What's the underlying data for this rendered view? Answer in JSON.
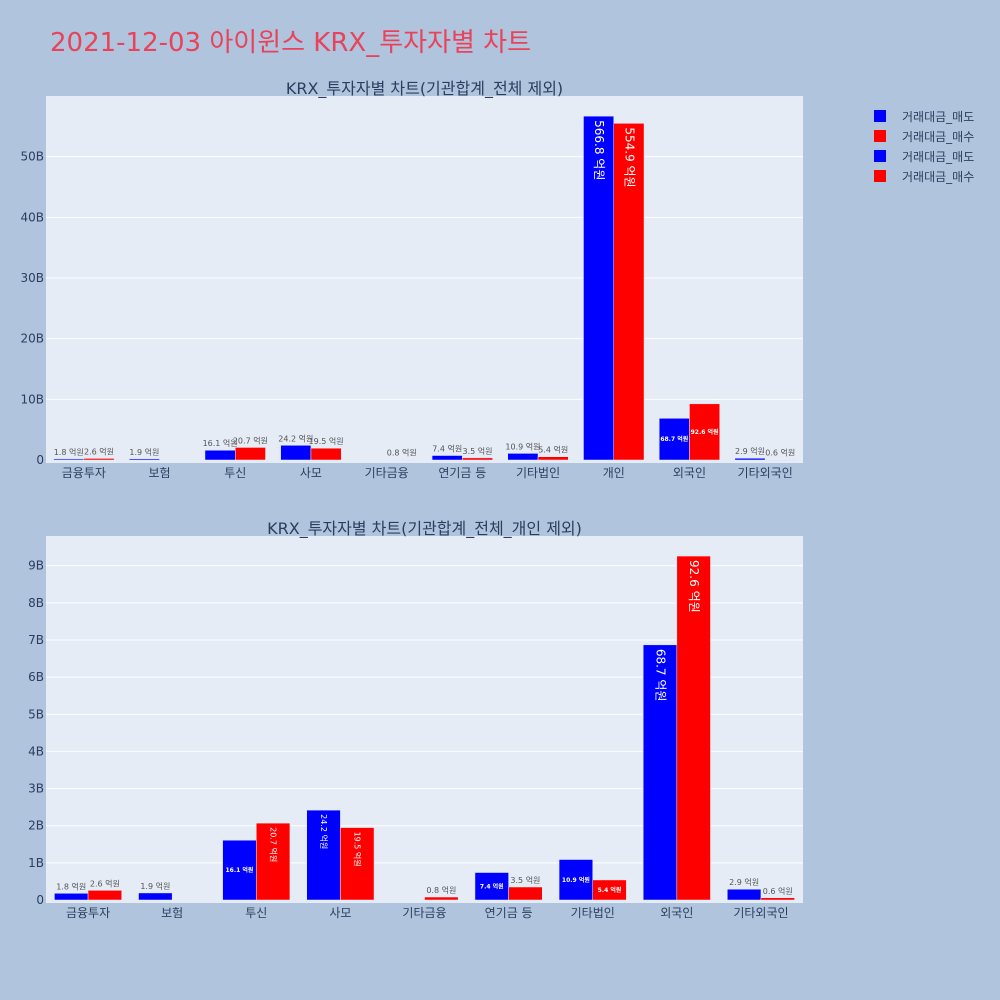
{
  "page": {
    "title": "2021-12-03 아이윈스 KRX_투자자별 차트"
  },
  "colors": {
    "sell": "#0000ff",
    "buy": "#ff0000",
    "plot_bg": "#e5ecf6",
    "page_bg": "#b0c4de",
    "title": "#e8435a"
  },
  "legend": {
    "items": [
      {
        "label": "거래대금_매도",
        "color": "#0000ff"
      },
      {
        "label": "거래대금_매수",
        "color": "#ff0000"
      },
      {
        "label": "거래대금_매도",
        "color": "#0000ff"
      },
      {
        "label": "거래대금_매수",
        "color": "#ff0000"
      }
    ]
  },
  "chart_data": [
    {
      "type": "bar",
      "title": "KRX_투자자별 차트(기관합계_전체 제외)",
      "categories": [
        "금융투자",
        "보험",
        "투신",
        "사모",
        "기타금융",
        "연기금 등",
        "기타법인",
        "개인",
        "외국인",
        "기타외국인"
      ],
      "ylim": [
        0,
        60
      ],
      "yticks": [
        0,
        10,
        20,
        30,
        40,
        50
      ],
      "ytick_labels": [
        "0",
        "10B",
        "20B",
        "30B",
        "40B",
        "50B"
      ],
      "series": [
        {
          "name": "거래대금_매도",
          "values": [
            0.18,
            0.19,
            1.61,
            2.42,
            0,
            0.74,
            1.09,
            56.68,
            6.87,
            0.29
          ],
          "labels": [
            "1.8 억원",
            "1.9 억원",
            "16.1 억원",
            "24.2 억원",
            "",
            "7.4 억원",
            "10.9 억원",
            "566.8 억원",
            "68.7 억원",
            "2.9 억원"
          ]
        },
        {
          "name": "거래대금_매수",
          "values": [
            0.26,
            0,
            2.07,
            1.95,
            0.08,
            0.35,
            0.54,
            55.49,
            9.26,
            0.06
          ],
          "labels": [
            "2.6 억원",
            "",
            "20.7 억원",
            "19.5 억원",
            "0.8 억원",
            "3.5 억원",
            "5.4 억원",
            "554.9 억원",
            "92.6 억원",
            "0.6 억원"
          ]
        }
      ]
    },
    {
      "type": "bar",
      "title": "KRX_투자자별 차트(기관합계_전체_개인 제외)",
      "categories": [
        "금융투자",
        "보험",
        "투신",
        "사모",
        "기타금융",
        "연기금 등",
        "기타법인",
        "외국인",
        "기타외국인"
      ],
      "ylim": [
        0,
        9.8
      ],
      "yticks": [
        0,
        1,
        2,
        3,
        4,
        5,
        6,
        7,
        8,
        9
      ],
      "ytick_labels": [
        "0",
        "1B",
        "2B",
        "3B",
        "4B",
        "5B",
        "6B",
        "7B",
        "8B",
        "9B"
      ],
      "series": [
        {
          "name": "거래대금_매도",
          "values": [
            0.18,
            0.19,
            1.61,
            2.42,
            0,
            0.74,
            1.09,
            6.87,
            0.29
          ],
          "labels": [
            "1.8 억원",
            "1.9 억원",
            "16.1 억원",
            "24.2 억원",
            "",
            "7.4 억원",
            "10.9 억원",
            "68.7 억원",
            "2.9 억원"
          ]
        },
        {
          "name": "거래대금_매수",
          "values": [
            0.26,
            0,
            2.07,
            1.95,
            0.08,
            0.35,
            0.54,
            9.26,
            0.06
          ],
          "labels": [
            "2.6 억원",
            "",
            "20.7 억원",
            "19.5 억원",
            "0.8 억원",
            "3.5 억원",
            "5.4 억원",
            "92.6 억원",
            "0.6 억원"
          ]
        }
      ]
    }
  ]
}
